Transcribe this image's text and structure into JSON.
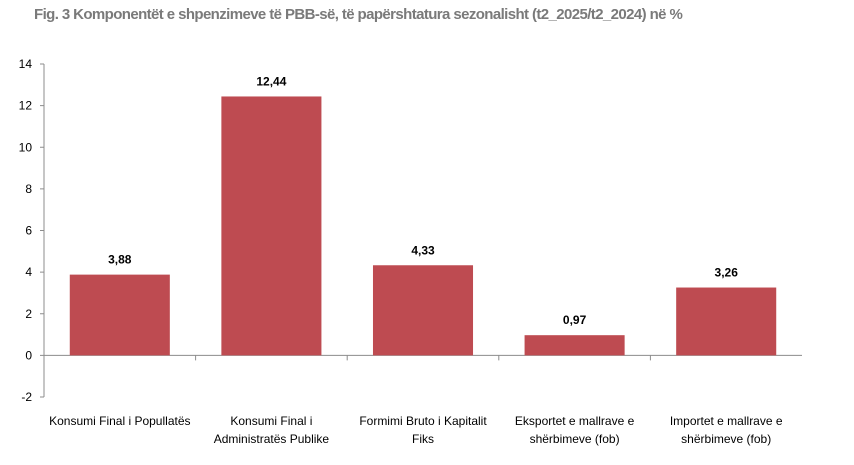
{
  "chart_data": {
    "type": "bar",
    "title": "Fig. 3 Komponentët e shpenzimeve të PBB-së, të papërshtatura sezonalisht (t2_2025/t2_2024) në %",
    "categories": [
      [
        "Konsumi Final i Popullatës"
      ],
      [
        "Konsumi Final i",
        "Administratës Publike"
      ],
      [
        "Formimi Bruto i Kapitalit",
        "Fiks"
      ],
      [
        "Eksportet e mallrave e",
        "shërbimeve (fob)"
      ],
      [
        "Importet e mallrave e",
        "shërbimeve (fob)"
      ]
    ],
    "values": [
      3.88,
      12.44,
      4.33,
      0.97,
      3.26
    ],
    "data_labels": [
      "3,88",
      "12,44",
      "4,33",
      "0,97",
      "3,26"
    ],
    "ylim": [
      -2,
      14
    ],
    "yticks": [
      -2,
      0,
      2,
      4,
      6,
      8,
      10,
      12,
      14
    ],
    "xlabel": "",
    "ylabel": "",
    "grid": false,
    "legend": "none",
    "bar_color": "#be4b51"
  }
}
